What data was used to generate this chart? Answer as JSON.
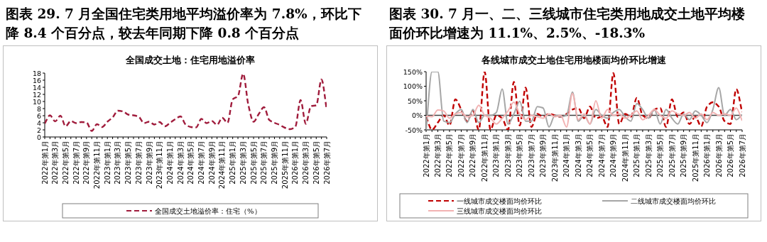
{
  "chart_data": [
    {
      "type": "line",
      "title": "图表 29. 7 月全国住宅类用地平均溢价率为 7.8%，环比下降 8.4 个百分点，较去年同期下降 0.8 个百分点",
      "subtitle": "全国成交土地：住宅用地溢价率",
      "categories": [
        "2022年第1月",
        null,
        "2022年第3月",
        null,
        "2022年第5月",
        null,
        "2022年第7月",
        null,
        "2022年第9月",
        null,
        "2022年第11月",
        null,
        "2023年第1月",
        null,
        "2023年第3月",
        null,
        "2023年第5月",
        null,
        "2023年第7月",
        null,
        "2023年第9月",
        null,
        "2023年第11月",
        null,
        "2024年第1月",
        null,
        "2024年第3月",
        null,
        "2024年第5月",
        null,
        "2024年第7月",
        null,
        "2024年第9月",
        null,
        "2024年第11月",
        null,
        "2025年第1月",
        null,
        "2025年第3月",
        null,
        "2025年第5月",
        null,
        "2025年第7月",
        null,
        "2025年第9月",
        null,
        "2025年第11月",
        null,
        "2026年第1月",
        null,
        "2026年第3月",
        null,
        "2026年第5月",
        null,
        "2026年第7月"
      ],
      "series": [
        {
          "name": "全国成交土地溢价率：住宅（%）",
          "color": "#a01c3c",
          "line_style": "dashed",
          "values": [
            3.8,
            6.1,
            4.4,
            6.0,
            3.0,
            4.5,
            3.9,
            4.2,
            4.1,
            1.7,
            3.6,
            2.8,
            4.3,
            5.5,
            7.4,
            7.2,
            6.3,
            6.1,
            5.7,
            3.9,
            4.3,
            3.5,
            4.2,
            3.0,
            4.0,
            5.0,
            5.8,
            3.5,
            2.8,
            2.7,
            5.1,
            3.9,
            4.5,
            3.4,
            5.4,
            4.0,
            10.6,
            11.5,
            17.8,
            9.0,
            4.3,
            6.5,
            8.4,
            4.8,
            4.0,
            3.4,
            2.6,
            2.2,
            2.9,
            10.4,
            3.7,
            8.7,
            8.9,
            16.2,
            7.8
          ]
        }
      ],
      "ylim": [
        0,
        18
      ],
      "yticks": [
        0,
        2,
        4,
        6,
        8,
        10,
        12,
        14,
        16,
        18
      ],
      "legend": "bottom",
      "marker": "none",
      "grid": false
    },
    {
      "type": "line",
      "title": "图表 30. 7 月一、二、三线城市住宅类用地成交土地平均楼面价环比增速为 11.1%、2.5%、-18.3%",
      "subtitle": "各线城市成交土地住宅用地楼面均价环比增速",
      "categories": [
        "2022年第1月",
        null,
        "2022年第3月",
        null,
        "2022年第5月",
        null,
        "2022年第7月",
        null,
        "2022年第9月",
        null,
        "2022年第11月",
        null,
        "2023年第1月",
        null,
        "2023年第3月",
        null,
        "2023年第5月",
        null,
        "2023年第7月",
        null,
        "2023年第9月",
        null,
        "2023年第11月",
        null,
        "2024年第1月",
        null,
        "2024年第3月",
        null,
        "2024年第5月",
        null,
        "2024年第7月",
        null,
        "2024年第9月",
        null,
        "2024年第11月",
        null,
        "2025年第1月",
        null,
        "2025年第3月",
        null,
        "2025年第5月",
        null,
        "2025年第7月",
        null,
        "2025年第9月",
        null,
        "2025年第11月",
        null,
        "2026年第1月",
        null,
        "2026年第3月",
        null,
        "2026年第5月",
        null,
        "2026年第7月"
      ],
      "series": [
        {
          "name": "一线城市成交楼面均价环比",
          "color": "#c00000",
          "line_style": "dashed",
          "values": [
            -5,
            -50,
            -25,
            0,
            -35,
            55,
            20,
            -20,
            15,
            -50,
            150,
            -50,
            0,
            -10,
            -50,
            115,
            -35,
            95,
            -40,
            5,
            -5,
            5,
            0,
            -5,
            5,
            20,
            25,
            -10,
            30,
            -10,
            -5,
            -40,
            145,
            -30,
            5,
            -5,
            60,
            0,
            -10,
            20,
            25,
            -40,
            55,
            -5,
            10,
            -30,
            -5,
            -38,
            30,
            45,
            30,
            -20,
            -30,
            90,
            11.1
          ]
        },
        {
          "name": "二线城市成交楼面均价环比",
          "color": "#a6a6a6",
          "line_style": "solid",
          "values": [
            -50,
            150,
            150,
            -20,
            -25,
            5,
            20,
            -25,
            20,
            -25,
            0,
            0,
            10,
            90,
            -30,
            5,
            48,
            -20,
            -20,
            30,
            25,
            -40,
            0,
            -5,
            0,
            80,
            -20,
            0,
            -30,
            20,
            0,
            -10,
            10,
            20,
            -5,
            -20,
            40,
            20,
            -10,
            20,
            -30,
            20,
            -10,
            -30,
            5,
            -15,
            15,
            0,
            -25,
            20,
            95,
            0,
            20,
            -15,
            2.5
          ]
        },
        {
          "name": "三线城市成交楼面均价环比",
          "color": "#f2b3b3",
          "line_style": "solid",
          "values": [
            -3,
            -5,
            18,
            15,
            -10,
            5,
            10,
            -5,
            0,
            35,
            0,
            -10,
            -30,
            -10,
            15,
            45,
            5,
            -15,
            0,
            -5,
            -10,
            5,
            -5,
            0,
            -40,
            75,
            -15,
            5,
            -30,
            50,
            -10,
            20,
            0,
            5,
            -10,
            0,
            15,
            -15,
            0,
            20,
            0,
            -10,
            15,
            5,
            0,
            10,
            -10,
            5,
            -15,
            10,
            0,
            5,
            0,
            25,
            -18.3
          ]
        }
      ],
      "ylim": [
        -50,
        150
      ],
      "yticks": [
        {
          "value": -50,
          "label": "-50%"
        },
        {
          "value": 0,
          "label": "0%"
        },
        {
          "value": 50,
          "label": "50%"
        },
        {
          "value": 100,
          "label": "100%"
        },
        {
          "value": 150,
          "label": "150%"
        }
      ],
      "ref_lines": [
        {
          "axis": "y",
          "value": 0,
          "color": "#404040"
        }
      ],
      "legend": "bottom",
      "marker": "none",
      "grid": false
    }
  ]
}
